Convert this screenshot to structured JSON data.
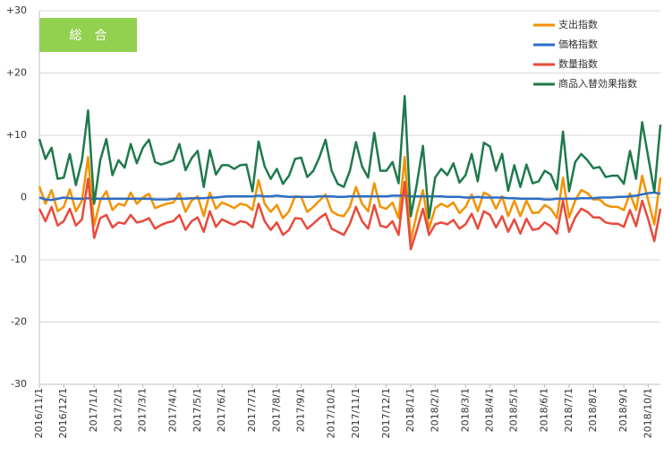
{
  "chart_data": {
    "type": "line",
    "title": "総　合",
    "legend": "top-right",
    "grid": true,
    "ylim": [
      -30,
      30
    ],
    "yticks": [
      {
        "value": 30,
        "label": "+30"
      },
      {
        "value": 20,
        "label": "+20"
      },
      {
        "value": 10,
        "label": "+10"
      },
      0,
      -10,
      -20,
      -30
    ],
    "categories": [
      "2016/11/1",
      null,
      null,
      null,
      "2016/12/1",
      null,
      null,
      null,
      null,
      "2017/1/1",
      null,
      null,
      null,
      "2017/2/1",
      null,
      null,
      null,
      "2017/3/1",
      null,
      null,
      null,
      null,
      "2017/4/1",
      null,
      null,
      null,
      "2017/5/1",
      null,
      null,
      null,
      "2017/6/1",
      null,
      null,
      null,
      null,
      "2017/7/1",
      null,
      null,
      null,
      "2017/8/1",
      null,
      null,
      null,
      "2017/9/1",
      null,
      null,
      null,
      null,
      "2017/10/1",
      null,
      null,
      null,
      "2017/11/1",
      null,
      null,
      null,
      null,
      "2017/12/1",
      null,
      null,
      null,
      "2018/1/1",
      null,
      null,
      null,
      "2018/2/1",
      null,
      null,
      null,
      null,
      "2018/3/1",
      null,
      null,
      null,
      "2018/4/1",
      null,
      null,
      null,
      "2018/5/1",
      null,
      null,
      null,
      null,
      "2018/6/1",
      null,
      null,
      null,
      "2018/7/1",
      null,
      null,
      null,
      "2018/8/1",
      null,
      null,
      null,
      null,
      "2018/9/1",
      null,
      null,
      null,
      "2018/10/1",
      null,
      null
    ],
    "series": [
      {
        "name": "支出指数",
        "color": "#f39200",
        "values": [
          1.8,
          -1,
          1.2,
          -2.2,
          -1.5,
          1.3,
          -2.2,
          -0.5,
          6.5,
          -4.5,
          -0.5,
          1,
          -2,
          -1,
          -1.3,
          0.8,
          -1,
          0,
          0.6,
          -1.7,
          -1.3,
          -1,
          -0.8,
          0.7,
          -2.3,
          -0.5,
          0.2,
          -3,
          0.8,
          -1.8,
          -0.8,
          -1.2,
          -1.7,
          -1,
          -1.2,
          -2,
          2.8,
          -1,
          -2.3,
          -1.2,
          -3.3,
          -2.2,
          0.2,
          0.1,
          -2.3,
          -1.5,
          -0.5,
          0.5,
          -2.2,
          -2.8,
          -3,
          -1.5,
          1.7,
          -1,
          -2.2,
          2.3,
          -1.5,
          -1.8,
          -0.8,
          -3.3,
          6.5,
          -7,
          -2.5,
          1.2,
          -5,
          -1.7,
          -1,
          -1.5,
          -0.8,
          -2.5,
          -1.5,
          0.5,
          -2.2,
          0.8,
          0.3,
          -1.8,
          0.2,
          -3,
          -0.5,
          -3,
          -0.5,
          -2.5,
          -2.4,
          -1.2,
          -1.8,
          -3.3,
          3.2,
          -3.2,
          -0.5,
          1.2,
          0.7,
          -0.3,
          -0.3,
          -1.2,
          -1.5,
          -1.5,
          -2,
          0.7,
          -2,
          3.5,
          -0.5,
          -4.3,
          3.2
        ]
      },
      {
        "name": "価格指数",
        "color": "#2e6ec6",
        "values": [
          0,
          -0.3,
          -0.4,
          -0.2,
          0,
          -0.1,
          -0.2,
          -0.2,
          -0.1,
          -0.2,
          -0.2,
          -0.2,
          -0.2,
          -0.2,
          -0.2,
          -0.2,
          -0.2,
          -0.2,
          -0.2,
          -0.3,
          -0.3,
          -0.3,
          -0.2,
          -0.2,
          -0.2,
          -0.1,
          -0.1,
          -0.1,
          0,
          0,
          0.1,
          0.2,
          0.2,
          0.2,
          0.2,
          0.2,
          0.3,
          0.2,
          0.2,
          0.3,
          0.2,
          0.1,
          0.1,
          0.1,
          0.1,
          0.1,
          0.2,
          0.2,
          0.2,
          0.1,
          0.1,
          0.2,
          0.2,
          0.2,
          0.2,
          0.2,
          0.2,
          0.2,
          0.3,
          0.3,
          0.3,
          0.2,
          0.2,
          0.2,
          0.2,
          0.2,
          0.2,
          0.1,
          0.1,
          0.1,
          0,
          0,
          0.1,
          0,
          0,
          0,
          0,
          -0.1,
          -0.1,
          -0.2,
          -0.2,
          -0.2,
          -0.2,
          -0.3,
          -0.3,
          -0.2,
          -0.2,
          -0.2,
          -0.2,
          -0.1,
          -0.1,
          -0.1,
          0,
          0,
          0,
          0.1,
          0.1,
          0.2,
          0.3,
          0.5,
          0.7,
          0.8,
          0.6
        ]
      },
      {
        "name": "数量指数",
        "color": "#e84a3c",
        "values": [
          -1.8,
          -3.8,
          -1.5,
          -4.5,
          -3.8,
          -1.8,
          -4.5,
          -3.5,
          3,
          -6.5,
          -3.3,
          -2.8,
          -4.8,
          -4,
          -4.2,
          -2.8,
          -4,
          -3.8,
          -3.3,
          -5,
          -4.4,
          -4,
          -3.8,
          -2.8,
          -5.2,
          -3.8,
          -3.2,
          -5.5,
          -2.2,
          -4.7,
          -3.5,
          -4,
          -4.4,
          -3.8,
          -4,
          -4.8,
          -1,
          -3.8,
          -5.2,
          -4,
          -6,
          -5.2,
          -3.3,
          -3.4,
          -5,
          -4.2,
          -3.3,
          -2.6,
          -5,
          -5.5,
          -6,
          -4.2,
          -1.5,
          -3.8,
          -5,
          -1.2,
          -4.5,
          -4.8,
          -3.8,
          -6,
          2.5,
          -8.3,
          -5.2,
          -1.8,
          -6,
          -4.3,
          -4,
          -4.3,
          -3.6,
          -5,
          -4.3,
          -2.6,
          -5,
          -2.2,
          -2.8,
          -4.8,
          -3,
          -5.5,
          -3.5,
          -5.8,
          -3.4,
          -5.2,
          -5,
          -4,
          -4.6,
          -5.8,
          -0.5,
          -5.5,
          -3.2,
          -1.8,
          -2.3,
          -3.2,
          -3.2,
          -4,
          -4.2,
          -4.2,
          -4.7,
          -2,
          -4.6,
          -0.5,
          -3.5,
          -7,
          -1.8
        ]
      },
      {
        "name": "商品入替効果指数",
        "color": "#1f7a4b",
        "values": [
          9.4,
          6.2,
          8,
          3,
          3.2,
          7,
          2,
          6,
          14,
          -1,
          6,
          9.4,
          3.6,
          6,
          4.8,
          8.6,
          5.5,
          8,
          9.3,
          5.7,
          5.3,
          5.6,
          6,
          8.6,
          4.4,
          6.3,
          7.5,
          1.7,
          7.6,
          3.7,
          5.2,
          5.2,
          4.6,
          5.2,
          5.3,
          1,
          9,
          5,
          3,
          4.6,
          2.2,
          3.5,
          6.2,
          6.4,
          3.3,
          4.3,
          6.5,
          9.3,
          4.3,
          2.2,
          1.7,
          4.3,
          8.9,
          5,
          3.2,
          10.4,
          4.3,
          4.3,
          5.7,
          2.3,
          16.3,
          -3,
          2.2,
          8.3,
          -3.3,
          3.2,
          4.6,
          3.6,
          5.5,
          2.4,
          3.6,
          7,
          2.6,
          8.8,
          8.2,
          4.3,
          7,
          1.1,
          5.2,
          1.7,
          5.3,
          2.3,
          2.6,
          4.3,
          3.7,
          1.3,
          10.6,
          1,
          5.7,
          7,
          6,
          4.7,
          4.9,
          3.3,
          3.5,
          3.5,
          2.2,
          7.5,
          3,
          12.1,
          6.5,
          0.9,
          11.7
        ]
      }
    ]
  }
}
